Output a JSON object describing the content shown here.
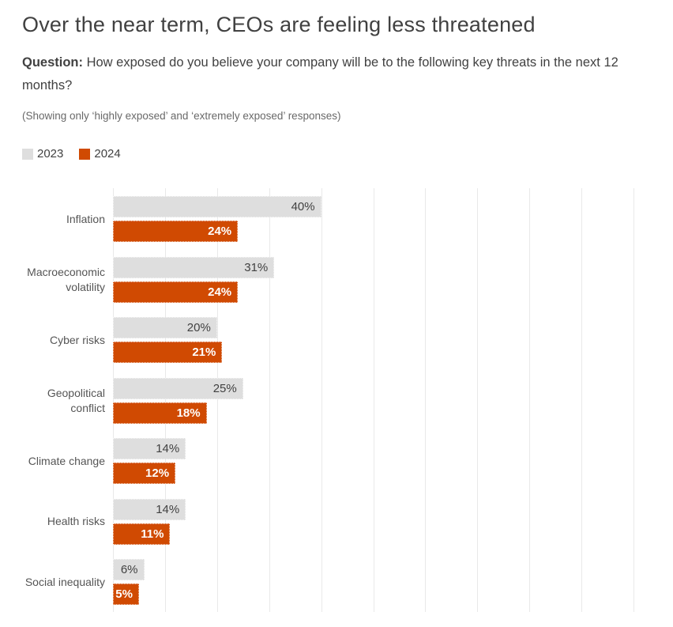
{
  "header": {
    "title": "Over the near term, CEOs are feeling less threatened",
    "question_label": "Question:",
    "question_text": " How exposed do you believe your company will be to the following key threats in the next 12 months?",
    "note": "(Showing only ‘highly exposed’ and ‘extremely exposed’ responses)"
  },
  "legend": {
    "items": [
      {
        "label": "2023",
        "color": "#dedede"
      },
      {
        "label": "2024",
        "color": "#d04a02"
      }
    ]
  },
  "chart_data": {
    "type": "bar",
    "orientation": "horizontal",
    "title": "Over the near term, CEOs are feeling less threatened",
    "categories": [
      "Inflation",
      "Macroeconomic volatility",
      "Cyber risks",
      "Geopolitical conflict",
      "Climate change",
      "Health risks",
      "Social inequality"
    ],
    "series": [
      {
        "name": "2023",
        "color": "#dedede",
        "values": [
          40,
          31,
          20,
          25,
          14,
          14,
          6
        ]
      },
      {
        "name": "2024",
        "color": "#d04a02",
        "values": [
          24,
          24,
          21,
          18,
          12,
          11,
          5
        ]
      }
    ],
    "value_suffix": "%",
    "xlabel": "",
    "ylabel": "",
    "xlim": [
      0,
      100
    ],
    "gridline_interval": 10,
    "grid": true,
    "legend_position": "top-left",
    "value_labels": "inside-end"
  },
  "colors": {
    "background": "#ffffff",
    "title_text": "#414141",
    "note_text": "#696969",
    "category_label_text": "#555555",
    "gridline": "#e9e9e9",
    "gray_bar": "#dedede",
    "orange_bar": "#d04a02"
  }
}
